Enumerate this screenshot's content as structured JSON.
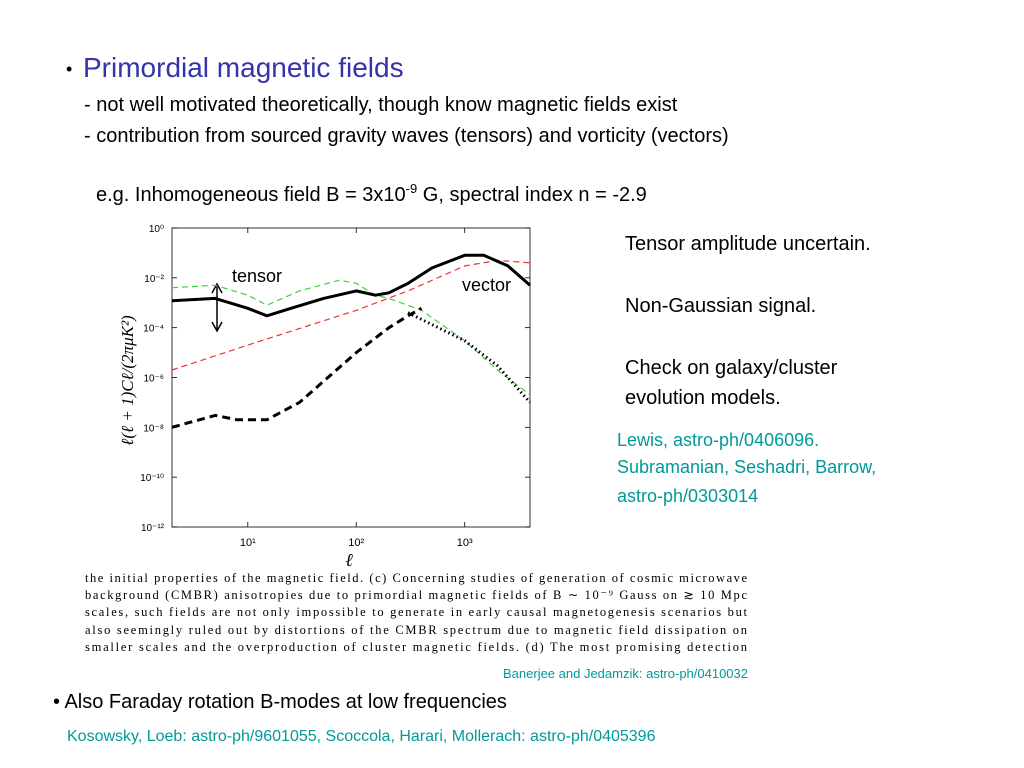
{
  "slide": {
    "bullet1": {
      "marker": "•",
      "title": "Primordial magnetic fields",
      "lines": [
        "- not well motivated theoretically, though know magnetic fields exist",
        "- contribution from sourced gravity waves (tensors) and vorticity (vectors)"
      ]
    },
    "example": {
      "before": "e.g. Inhomogeneous field B = 3x10",
      "sup": "-9",
      "after": " G, spectral index n = -2.9"
    },
    "notes": [
      "Tensor amplitude uncertain.",
      "Non-Gaussian signal.",
      "Check on galaxy/cluster",
      "evolution models."
    ],
    "refs": [
      "Lewis, astro-ph/0406096.",
      "Subramanian, Seshadri, Barrow,",
      "astro-ph/0303014"
    ],
    "caption": [
      "the initial properties of the magnetic field.  (c) Concerning studies of generation of cosmic microwave",
      "background (CMBR) anisotropies due to primordial magnetic fields of B ∼ 10⁻⁹ Gauss on ≳ 10 Mpc",
      "scales, such fields are not only impossible to generate in early causal magnetogenesis scenarios but",
      "also seemingly ruled out by distortions of the CMBR spectrum due to magnetic field dissipation on",
      "smaller scales and the overproduction of cluster magnetic fields.  (d) The most promising detection"
    ],
    "caption_ref": "Banerjee and Jedamzik: astro-ph/0410032",
    "bullet2": "• Also Faraday rotation B-modes at low frequencies",
    "bullet2_ref": "Kosowsky, Loeb: astro-ph/9601055, Scoccola, Harari, Mollerach: astro-ph/0405396"
  },
  "chart_data": {
    "type": "line",
    "xlabel": "ℓ",
    "ylabel": "ℓ(ℓ + 1)Cℓ/(2πμK²)",
    "xlog": true,
    "ylog": true,
    "xlim": [
      2,
      4000
    ],
    "ylim": [
      1e-12,
      1
    ],
    "xticks": [
      {
        "value": 10,
        "label": "10¹"
      },
      {
        "value": 100,
        "label": "10²"
      },
      {
        "value": 1000,
        "label": "10³"
      }
    ],
    "yticks": [
      {
        "value": 1e-12,
        "label": "10⁻¹²"
      },
      {
        "value": 1e-10,
        "label": "10⁻¹⁰"
      },
      {
        "value": 1e-08,
        "label": "10⁻⁸"
      },
      {
        "value": 1e-06,
        "label": "10⁻⁶"
      },
      {
        "value": 0.0001,
        "label": "10⁻⁴"
      },
      {
        "value": 0.01,
        "label": "10⁻²"
      },
      {
        "value": 1,
        "label": "10⁰"
      }
    ],
    "annotations": [
      "tensor",
      "vector"
    ],
    "series": [
      {
        "color": "#ee3333",
        "style": "dashed",
        "x": [
          2,
          10,
          100,
          300,
          1000,
          2000,
          4000
        ],
        "values": [
          2e-06,
          2e-05,
          0.0005,
          0.003,
          0.03,
          0.05,
          0.04
        ]
      },
      {
        "color": "#44cc44",
        "style": "dashed",
        "x": [
          2,
          5,
          10,
          15,
          30,
          70,
          100,
          150,
          200,
          400,
          1000,
          2000,
          4000
        ],
        "values": [
          0.004,
          0.005,
          0.002,
          0.0008,
          0.003,
          0.008,
          0.006,
          0.002,
          0.0015,
          0.0005,
          3e-05,
          2e-06,
          2e-07
        ]
      },
      {
        "color": "#000000",
        "style": "solid",
        "x": [
          2,
          5,
          10,
          15,
          25,
          50,
          100,
          150,
          200,
          300,
          500,
          1000,
          1500,
          2500,
          4000
        ],
        "values": [
          0.0012,
          0.0015,
          0.0006,
          0.0003,
          0.0006,
          0.0015,
          0.003,
          0.002,
          0.0025,
          0.006,
          0.025,
          0.08,
          0.08,
          0.03,
          0.005
        ]
      },
      {
        "color": "#000000",
        "style": "thickdash",
        "x": [
          2,
          5,
          8,
          15,
          30,
          100,
          200,
          300,
          400
        ],
        "values": [
          1e-08,
          3e-08,
          2e-08,
          2e-08,
          1e-07,
          1e-05,
          0.0001,
          0.0003,
          0.0006
        ]
      },
      {
        "color": "#000000",
        "style": "dotted",
        "x": [
          300,
          1000,
          2000,
          4000
        ],
        "values": [
          0.0004,
          3e-05,
          3e-06,
          1e-07
        ]
      }
    ]
  }
}
